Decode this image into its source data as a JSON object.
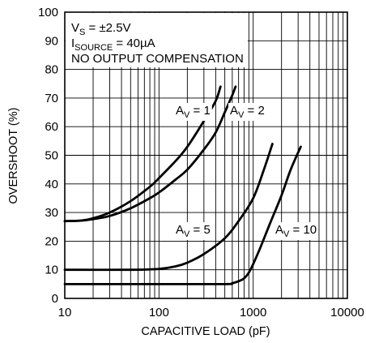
{
  "chart_data": {
    "type": "line",
    "xlabel": "CAPACITIVE LOAD (pF)",
    "ylabel": "OVERSHOOT (%)",
    "xscale": "log",
    "xlim": [
      10,
      10000
    ],
    "ylim": [
      0,
      100
    ],
    "x_ticks": [
      10,
      100,
      1000,
      10000
    ],
    "y_ticks": [
      0,
      10,
      20,
      30,
      40,
      50,
      60,
      70,
      80,
      90,
      100
    ],
    "x_tick_labels": [
      "10",
      "100",
      "1000",
      "10000"
    ],
    "y_tick_labels": [
      "0",
      "10",
      "20",
      "30",
      "40",
      "50",
      "60",
      "70",
      "80",
      "90",
      "100"
    ],
    "grid": true,
    "conditions": [
      {
        "main": "V",
        "sub": "S",
        "rest": " = ±2.5V"
      },
      {
        "main": "I",
        "sub": "SOURCE",
        "rest": " = 40µA"
      },
      {
        "main": "NO OUTPUT COMPENSATION",
        "sub": "",
        "rest": ""
      }
    ],
    "series": [
      {
        "label": {
          "main": "A",
          "sub": "V",
          "rest": " = 1"
        },
        "points": [
          [
            10,
            27
          ],
          [
            15,
            27.2
          ],
          [
            20,
            28
          ],
          [
            30,
            30
          ],
          [
            50,
            34
          ],
          [
            80,
            39
          ],
          [
            100,
            42
          ],
          [
            150,
            48
          ],
          [
            200,
            53
          ],
          [
            300,
            62
          ],
          [
            400,
            69
          ],
          [
            450,
            74
          ]
        ]
      },
      {
        "label": {
          "main": "A",
          "sub": "V",
          "rest": " = 2"
        },
        "points": [
          [
            10,
            27
          ],
          [
            15,
            27.2
          ],
          [
            20,
            27.7
          ],
          [
            30,
            28.8
          ],
          [
            50,
            31.5
          ],
          [
            80,
            35
          ],
          [
            100,
            37
          ],
          [
            150,
            41.5
          ],
          [
            200,
            45
          ],
          [
            300,
            52
          ],
          [
            400,
            58
          ],
          [
            500,
            65
          ],
          [
            600,
            71
          ],
          [
            650,
            74
          ]
        ]
      },
      {
        "label": {
          "main": "A",
          "sub": "V",
          "rest": " = 5"
        },
        "points": [
          [
            10,
            10
          ],
          [
            50,
            10
          ],
          [
            100,
            10.3
          ],
          [
            150,
            11.2
          ],
          [
            200,
            12.5
          ],
          [
            300,
            15.5
          ],
          [
            500,
            21
          ],
          [
            700,
            27
          ],
          [
            1000,
            35
          ],
          [
            1300,
            45
          ],
          [
            1600,
            54
          ]
        ]
      },
      {
        "label": {
          "main": "A",
          "sub": "V",
          "rest": " = 10"
        },
        "points": [
          [
            10,
            5
          ],
          [
            100,
            5
          ],
          [
            500,
            5
          ],
          [
            600,
            5.3
          ],
          [
            700,
            6
          ],
          [
            800,
            7
          ],
          [
            900,
            9
          ],
          [
            1000,
            12
          ],
          [
            1200,
            18
          ],
          [
            1500,
            26
          ],
          [
            2000,
            36
          ],
          [
            2500,
            45
          ],
          [
            3200,
            53
          ]
        ]
      }
    ]
  }
}
